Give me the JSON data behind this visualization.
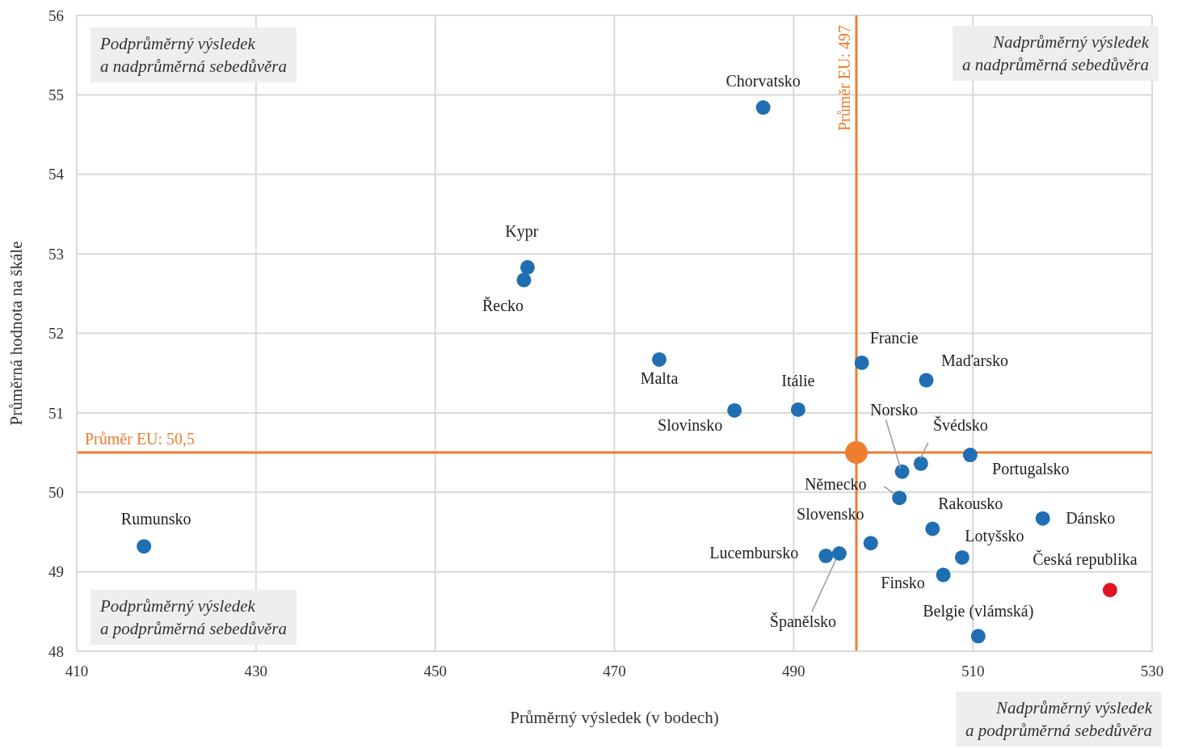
{
  "chart_data": {
    "type": "scatter",
    "xlabel": "Průměrný výsledek (v bodech)",
    "ylabel": "Průměrná hodnota na škále",
    "xlim": [
      410,
      530
    ],
    "xticks": [
      410,
      430,
      450,
      470,
      490,
      510,
      530
    ],
    "ylim": [
      48,
      56
    ],
    "yticks": [
      48,
      49,
      50,
      51,
      52,
      53,
      54,
      55,
      56
    ],
    "grid": true,
    "legend": false,
    "marker": "circle",
    "series": [
      {
        "color": "#1f6fb2",
        "x": [
          486.6,
          460.3,
          459.9,
          475.0,
          483.4,
          490.5,
          497.6,
          504.8,
          502.1,
          504.2,
          509.7,
          501.8,
          505.5,
          517.8,
          498.6,
          493.6,
          495.1,
          508.8,
          506.7,
          510.6,
          417.5
        ],
        "values": [
          54.84,
          52.83,
          52.67,
          51.67,
          51.03,
          51.04,
          51.63,
          51.41,
          50.26,
          50.36,
          50.47,
          49.93,
          49.54,
          49.67,
          49.36,
          49.2,
          49.23,
          49.18,
          48.96,
          48.19,
          49.32
        ]
      },
      {
        "color": "#e0141e",
        "x": [
          525.3
        ],
        "values": [
          48.77
        ]
      },
      {
        "color": "#ed7d31",
        "x": [
          497
        ],
        "values": [
          50.5
        ]
      }
    ],
    "ref_lines": [
      {
        "axis": "x",
        "value": 497,
        "label": "Průměr EU: 497",
        "color": "#ed7d31"
      },
      {
        "axis": "y",
        "value": 50.5,
        "label": "Průměr EU: 50,5",
        "color": "#ed7d31"
      }
    ],
    "annotations": [
      {
        "text": "Chorvatsko",
        "x": 486.6,
        "y": 54.84
      },
      {
        "text": "Kypr",
        "x": 460.3,
        "y": 52.83
      },
      {
        "text": "Řecko",
        "x": 459.9,
        "y": 52.67
      },
      {
        "text": "Malta",
        "x": 475.0,
        "y": 51.67
      },
      {
        "text": "Slovinsko",
        "x": 483.4,
        "y": 51.03
      },
      {
        "text": "Itálie",
        "x": 490.5,
        "y": 51.04
      },
      {
        "text": "Francie",
        "x": 497.6,
        "y": 51.63
      },
      {
        "text": "Maďarsko",
        "x": 504.8,
        "y": 51.41
      },
      {
        "text": "Norsko",
        "x": 502.1,
        "y": 50.26
      },
      {
        "text": "Švédsko",
        "x": 504.2,
        "y": 50.36
      },
      {
        "text": "Portugalsko",
        "x": 509.7,
        "y": 50.47
      },
      {
        "text": "Německo",
        "x": 501.8,
        "y": 49.93
      },
      {
        "text": "Rakousko",
        "x": 505.5,
        "y": 49.54
      },
      {
        "text": "Dánsko",
        "x": 517.8,
        "y": 49.67
      },
      {
        "text": "Slovensko",
        "x": 498.6,
        "y": 49.36
      },
      {
        "text": "Lucembursko",
        "x": 493.6,
        "y": 49.2
      },
      {
        "text": "Španělsko",
        "x": 495.1,
        "y": 49.23
      },
      {
        "text": "Lotyšsko",
        "x": 508.8,
        "y": 49.18
      },
      {
        "text": "Finsko",
        "x": 506.7,
        "y": 48.96
      },
      {
        "text": "Belgie (vlámská)",
        "x": 510.6,
        "y": 48.19
      },
      {
        "text": "Rumunsko",
        "x": 417.5,
        "y": 49.32
      },
      {
        "text": "Česká republika",
        "x": 525.3,
        "y": 48.77
      },
      "Podprůměrný výsledek\na nadprůměrná sebedůvěra",
      "Nadprůměrný výsledek\na nadprůměrná sebedůvěra",
      "Podprůměrný výsledek\na podprůměrná sebedůvěra",
      "Nadprůměrný výsledek\na podprůměrná sebedůvěra"
    ]
  }
}
